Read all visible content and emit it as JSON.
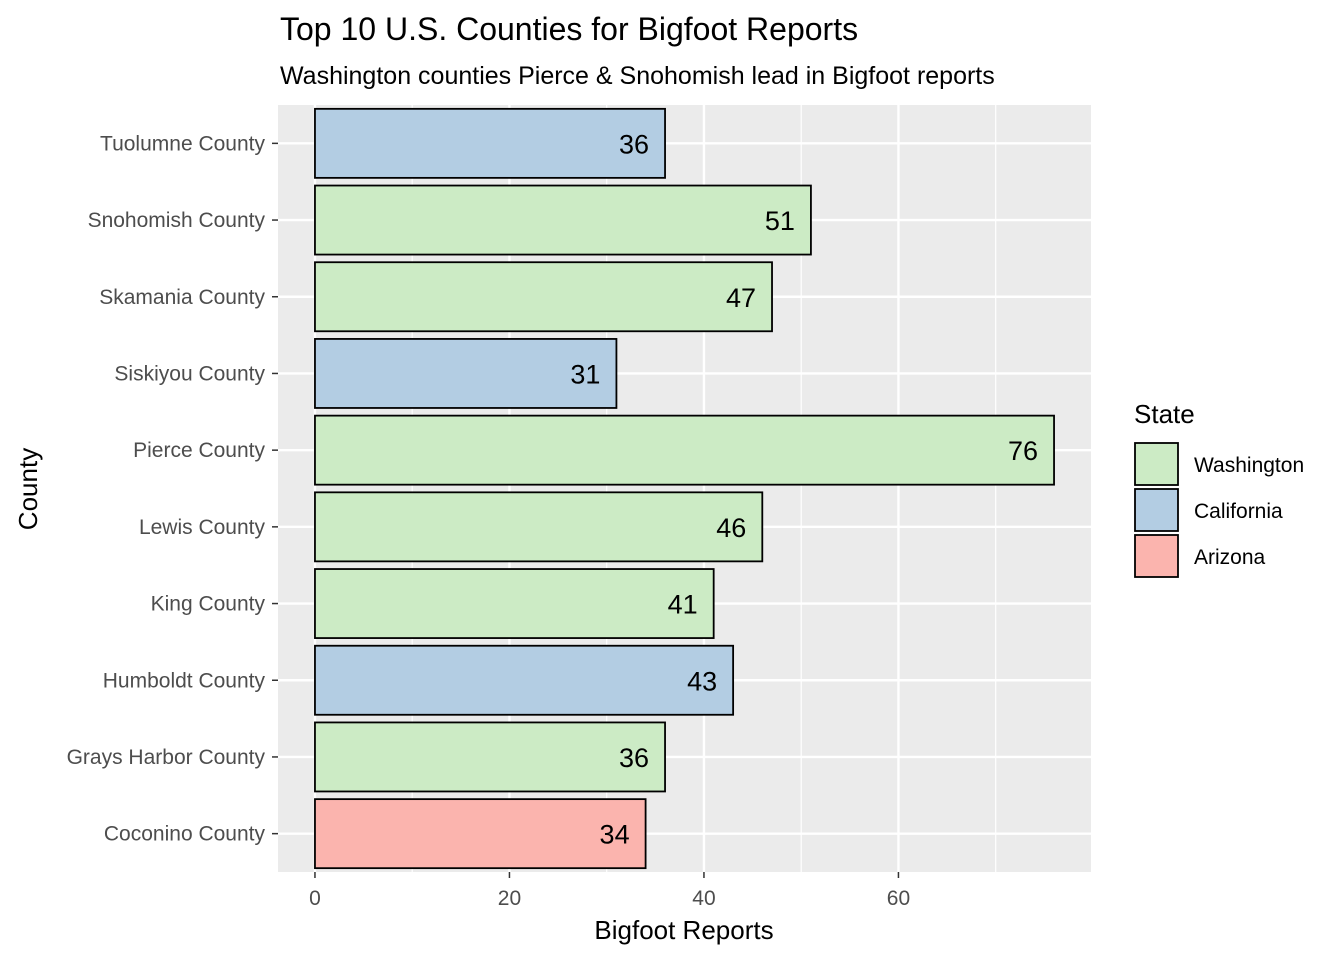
{
  "chart_data": {
    "type": "bar",
    "orientation": "horizontal",
    "title": "Top 10 U.S. Counties for Bigfoot Reports",
    "subtitle": "Washington counties Pierce & Snohomish lead in Bigfoot reports",
    "xlabel": "Bigfoot Reports",
    "ylabel": "County",
    "xlim": [
      -3.8,
      79.8
    ],
    "x_ticks": [
      0,
      20,
      40,
      60
    ],
    "grid": true,
    "legend": {
      "title": "State",
      "position": "right",
      "entries": [
        {
          "label": "Washington",
          "color": "#CCEBC5"
        },
        {
          "label": "California",
          "color": "#B3CDE3"
        },
        {
          "label": "Arizona",
          "color": "#FBB4AE"
        }
      ]
    },
    "bars": [
      {
        "county": "Tuolumne County",
        "value": 36,
        "state": "California"
      },
      {
        "county": "Snohomish County",
        "value": 51,
        "state": "Washington"
      },
      {
        "county": "Skamania County",
        "value": 47,
        "state": "Washington"
      },
      {
        "county": "Siskiyou County",
        "value": 31,
        "state": "California"
      },
      {
        "county": "Pierce County",
        "value": 76,
        "state": "Washington"
      },
      {
        "county": "Lewis County",
        "value": 46,
        "state": "Washington"
      },
      {
        "county": "King County",
        "value": 41,
        "state": "Washington"
      },
      {
        "county": "Humboldt County",
        "value": 43,
        "state": "California"
      },
      {
        "county": "Grays Harbor County",
        "value": 36,
        "state": "Washington"
      },
      {
        "county": "Coconino County",
        "value": 34,
        "state": "Arizona"
      }
    ],
    "colors": {
      "panel_background": "#EBEBEB",
      "grid": "#FFFFFF",
      "bar_outline": "#000000"
    }
  }
}
